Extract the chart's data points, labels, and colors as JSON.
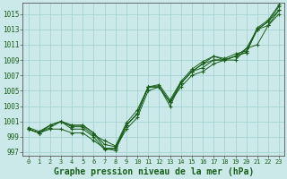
{
  "background_color": "#cbe9e9",
  "grid_color": "#9ecfcf",
  "line_color": "#1a5e1a",
  "xlabel": "Graphe pression niveau de la mer (hPa)",
  "xlabel_fontsize": 7.0,
  "ytick_fontsize": 5.5,
  "xtick_fontsize": 5.0,
  "ylim": [
    996.5,
    1016.5
  ],
  "xlim": [
    -0.5,
    23.5
  ],
  "yticks": [
    997,
    999,
    1001,
    1003,
    1005,
    1007,
    1009,
    1011,
    1013,
    1015
  ],
  "xticks": [
    0,
    1,
    2,
    3,
    4,
    5,
    6,
    7,
    8,
    9,
    10,
    11,
    12,
    13,
    14,
    15,
    16,
    17,
    18,
    19,
    20,
    21,
    22,
    23
  ],
  "series": [
    [
      1000.0,
      999.5,
      1000.5,
      1001.0,
      1000.5,
      1000.5,
      999.5,
      998.0,
      997.7,
      1000.5,
      1002.0,
      1005.5,
      1005.5,
      1003.5,
      1006.0,
      1007.5,
      1008.5,
      1009.5,
      1009.0,
      1009.5,
      1010.0,
      1013.0,
      1014.0,
      1016.0
    ],
    [
      1000.0,
      999.5,
      1000.5,
      1001.0,
      1000.5,
      1000.5,
      999.5,
      997.5,
      997.2,
      1000.5,
      1002.0,
      1005.5,
      1005.5,
      1003.5,
      1006.0,
      1007.5,
      1008.0,
      1009.0,
      1009.0,
      1009.5,
      1010.5,
      1013.0,
      1013.5,
      1015.5
    ],
    [
      1000.0,
      999.5,
      1000.0,
      1000.0,
      999.5,
      999.5,
      998.5,
      997.5,
      997.5,
      1000.0,
      1001.5,
      1005.0,
      1005.5,
      1003.5,
      1005.5,
      1007.0,
      1007.5,
      1008.5,
      1009.0,
      1009.0,
      1010.5,
      1011.0,
      1013.5,
      1015.0
    ],
    [
      1000.2,
      999.7,
      1000.5,
      1001.0,
      1000.0,
      1000.0,
      999.0,
      997.3,
      997.5,
      1000.5,
      1002.0,
      1005.5,
      1005.5,
      1003.0,
      1006.0,
      1007.5,
      1008.5,
      1009.0,
      1009.0,
      1009.5,
      1010.0,
      1013.0,
      1014.0,
      1015.5
    ],
    [
      1000.0,
      999.5,
      1000.2,
      1001.0,
      1000.3,
      1000.3,
      999.2,
      998.5,
      997.8,
      1000.8,
      1002.5,
      1005.5,
      1005.8,
      1003.8,
      1006.2,
      1007.8,
      1008.8,
      1009.5,
      1009.2,
      1009.8,
      1010.2,
      1013.2,
      1014.2,
      1016.2
    ]
  ],
  "figsize": [
    3.2,
    2.0
  ],
  "dpi": 100
}
